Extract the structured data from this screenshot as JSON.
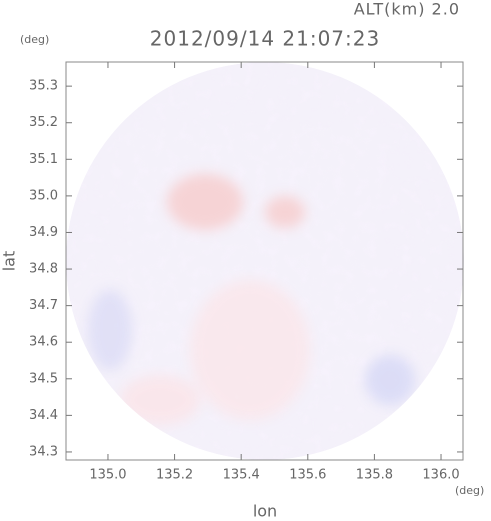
{
  "chart_data": {
    "type": "radar-map",
    "altitude_label": "ALT(km) 2.0",
    "title": "2012/09/14 21:07:23",
    "x_unit": "(deg)",
    "y_unit": "(deg)",
    "x_label": "lon",
    "y_label": "lat",
    "xlim": [
      134.874,
      136.066
    ],
    "ylim": [
      34.278,
      35.366
    ],
    "xticks": [
      {
        "value": 135,
        "label": "135.0"
      },
      135.2,
      135.4,
      135.6,
      135.8,
      {
        "value": 136,
        "label": "136.0"
      }
    ],
    "yticks": [
      34.3,
      34.4,
      34.5,
      34.6,
      34.7,
      34.8,
      34.9,
      {
        "value": 35,
        "label": "35.0"
      },
      35.1,
      35.2,
      35.3
    ]
  }
}
